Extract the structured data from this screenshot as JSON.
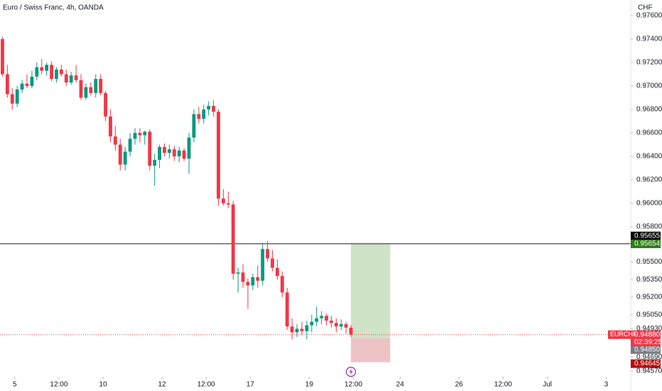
{
  "chart_data": {
    "type": "candlestick",
    "title": "Euro / Swiss Franc, 4h, OANDA",
    "currency": "CHF",
    "symbol": "EURCHF",
    "countdown": "02:39:25",
    "up_color": "#089981",
    "down_color": "#f23645",
    "open": [
      0.974,
      0.971,
      0.9693,
      0.9685,
      0.9697,
      0.9702,
      0.97,
      0.9708,
      0.9716,
      0.9713,
      0.9718,
      0.9706,
      0.9714,
      0.971,
      0.9703,
      0.9709,
      0.9705,
      0.969,
      0.9699,
      0.9694,
      0.9706,
      0.9694,
      0.9674,
      0.9657,
      0.965,
      0.9633,
      0.9644,
      0.9655,
      0.966,
      0.9658,
      0.9661,
      0.9632,
      0.9637,
      0.9648,
      0.9643,
      0.9646,
      0.964,
      0.9645,
      0.9638,
      0.9656,
      0.9676,
      0.9672,
      0.968,
      0.9683,
      0.9678,
      0.9604,
      0.96,
      0.9599,
      0.954,
      0.9541,
      0.9533,
      0.953,
      0.9537,
      0.9534,
      0.9561,
      0.9553,
      0.9545,
      0.9538,
      0.9524,
      0.9495,
      0.949,
      0.9493,
      0.9491,
      0.9496,
      0.9499,
      0.9502,
      0.9504,
      0.95,
      0.9498,
      0.9495,
      0.9497,
      0.9494
    ],
    "high": [
      0.9742,
      0.9718,
      0.9698,
      0.97,
      0.9705,
      0.971,
      0.9713,
      0.972,
      0.9723,
      0.972,
      0.9721,
      0.9716,
      0.9718,
      0.9714,
      0.9712,
      0.9718,
      0.971,
      0.9702,
      0.9703,
      0.971,
      0.971,
      0.9696,
      0.968,
      0.9666,
      0.9655,
      0.9648,
      0.966,
      0.9664,
      0.9664,
      0.9662,
      0.9663,
      0.9642,
      0.965,
      0.9651,
      0.965,
      0.9649,
      0.9648,
      0.9647,
      0.966,
      0.968,
      0.9682,
      0.9684,
      0.9687,
      0.9688,
      0.968,
      0.9612,
      0.961,
      0.9602,
      0.9545,
      0.9548,
      0.9536,
      0.954,
      0.9547,
      0.9565,
      0.9568,
      0.956,
      0.9552,
      0.9542,
      0.9528,
      0.9502,
      0.9497,
      0.9499,
      0.95,
      0.9505,
      0.9512,
      0.9508,
      0.9506,
      0.9504,
      0.9502,
      0.9501,
      0.9499,
      0.9496
    ],
    "low": [
      0.9708,
      0.969,
      0.968,
      0.9682,
      0.9694,
      0.9698,
      0.9698,
      0.9705,
      0.971,
      0.9709,
      0.9704,
      0.9703,
      0.9708,
      0.97,
      0.9701,
      0.9703,
      0.9688,
      0.9688,
      0.9692,
      0.969,
      0.9692,
      0.967,
      0.9652,
      0.9645,
      0.9628,
      0.9628,
      0.964,
      0.965,
      0.9652,
      0.965,
      0.9628,
      0.9615,
      0.963,
      0.964,
      0.9638,
      0.9636,
      0.9635,
      0.9636,
      0.9625,
      0.9652,
      0.9668,
      0.9668,
      0.9675,
      0.9674,
      0.9598,
      0.9598,
      0.9596,
      0.9535,
      0.9524,
      0.9528,
      0.951,
      0.9526,
      0.9528,
      0.953,
      0.955,
      0.9542,
      0.9535,
      0.952,
      0.9492,
      0.9484,
      0.9486,
      0.9488,
      0.9484,
      0.949,
      0.9495,
      0.9497,
      0.9496,
      0.9494,
      0.949,
      0.9492,
      0.9489,
      0.9486
    ],
    "close": [
      0.971,
      0.9693,
      0.9685,
      0.9697,
      0.9702,
      0.97,
      0.9708,
      0.9716,
      0.9713,
      0.9718,
      0.9706,
      0.9714,
      0.971,
      0.9703,
      0.9709,
      0.9705,
      0.969,
      0.9699,
      0.9694,
      0.9706,
      0.9694,
      0.9674,
      0.9657,
      0.965,
      0.9633,
      0.9644,
      0.9655,
      0.966,
      0.9658,
      0.9661,
      0.9632,
      0.9637,
      0.9648,
      0.9643,
      0.9646,
      0.964,
      0.9645,
      0.9638,
      0.9656,
      0.9676,
      0.9672,
      0.968,
      0.9683,
      0.9678,
      0.9604,
      0.96,
      0.9599,
      0.954,
      0.9541,
      0.9533,
      0.953,
      0.9537,
      0.9534,
      0.9561,
      0.9553,
      0.9545,
      0.9538,
      0.9524,
      0.9495,
      0.949,
      0.9493,
      0.9491,
      0.9496,
      0.9499,
      0.9502,
      0.9504,
      0.95,
      0.9498,
      0.9495,
      0.9497,
      0.9494,
      0.9488
    ],
    "xlim": [
      -0.5,
      128
    ],
    "xticks": [
      {
        "value": 2.5,
        "label": "5"
      },
      {
        "value": 11.5,
        "label": "12:00"
      },
      {
        "value": 20.5,
        "label": "10"
      },
      {
        "value": 32.5,
        "label": "12"
      },
      {
        "value": 41.5,
        "label": "12:00"
      },
      {
        "value": 50.5,
        "label": "17"
      },
      {
        "value": 62.5,
        "label": "19"
      },
      {
        "value": 71.5,
        "label": "12:00"
      },
      {
        "value": 81,
        "label": "24"
      },
      {
        "value": 93,
        "label": "26"
      },
      {
        "value": 102,
        "label": "12:00"
      },
      {
        "value": 111,
        "label": "Jul"
      },
      {
        "value": 123,
        "label": "3"
      }
    ],
    "ylim": [
      0.94521,
      0.97733
    ],
    "yticks": [
      {
        "value": 0.976,
        "label": "0.97600"
      },
      {
        "value": 0.974,
        "label": "0.97400"
      },
      {
        "value": 0.972,
        "label": "0.97200"
      },
      {
        "value": 0.97,
        "label": "0.97000"
      },
      {
        "value": 0.968,
        "label": "0.96800"
      },
      {
        "value": 0.966,
        "label": "0.96600"
      },
      {
        "value": 0.964,
        "label": "0.96400"
      },
      {
        "value": 0.962,
        "label": "0.96200"
      },
      {
        "value": 0.96,
        "label": "0.96000"
      },
      {
        "value": 0.958,
        "label": "0.95800"
      },
      {
        "value": 0.955,
        "label": "0.95500"
      },
      {
        "value": 0.9535,
        "label": "0.95350"
      },
      {
        "value": 0.952,
        "label": "0.95200"
      },
      {
        "value": 0.9505,
        "label": "0.95050"
      },
      {
        "value": 0.9493,
        "label": "0.94930"
      },
      {
        "value": 0.9469,
        "label": "0.94690"
      },
      {
        "value": 0.9457,
        "label": "0.94570"
      }
    ],
    "hline": {
      "value": 0.95655,
      "color": "#131722"
    },
    "position": {
      "x": [
        71,
        79
      ],
      "entry": 0.9485,
      "target": 0.95654,
      "stop": 0.94645,
      "profit_color": "#cfe3c7",
      "loss_color": "#eec3c5"
    },
    "price_labels": [
      {
        "value": 0.95655,
        "label": "0.95655",
        "color": "#000000"
      },
      {
        "value": 0.95654,
        "label": "0.95654",
        "color": "#2e7d1a"
      },
      {
        "value": 0.9488,
        "label": "0.94880",
        "color": "#f23645"
      },
      {
        "value": 0.9485,
        "label": "0.94850",
        "color": "#787b86"
      },
      {
        "value": 0.94645,
        "label": "0.94645",
        "color": "#b20e0e"
      }
    ]
  }
}
